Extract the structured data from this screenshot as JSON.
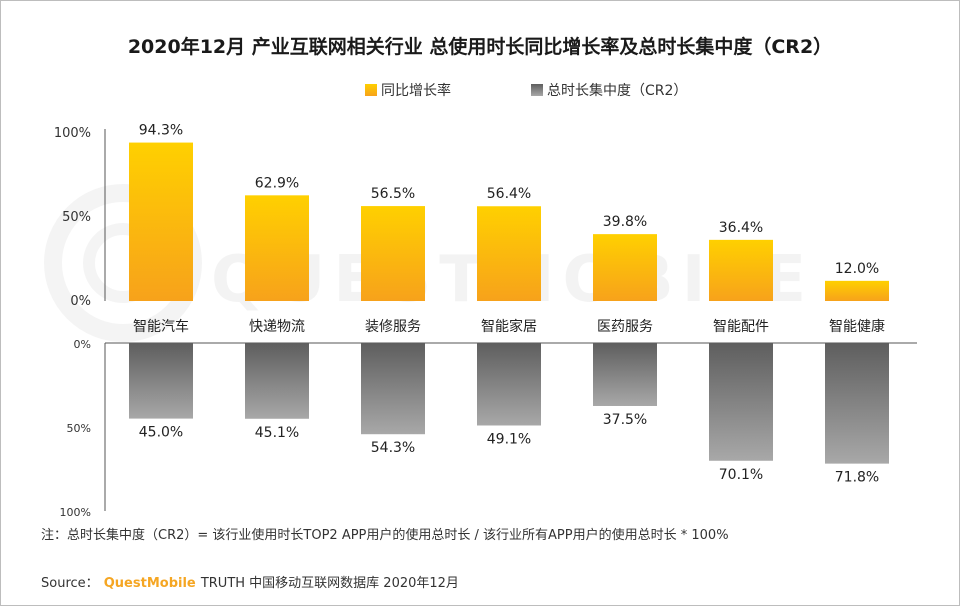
{
  "title": "2020年12月 产业互联网相关行业 总使用时长同比增长率及总时长集中度（CR2）",
  "chart_data": {
    "type": "bar",
    "categories": [
      "智能汽车",
      "快递物流",
      "装修服务",
      "智能家居",
      "医药服务",
      "智能配件",
      "智能健康"
    ],
    "series": [
      {
        "name": "同比增长率",
        "values": [
          94.3,
          62.9,
          56.5,
          56.4,
          39.8,
          36.4,
          12.0
        ],
        "labels": [
          "94.3%",
          "62.9%",
          "56.5%",
          "56.4%",
          "39.8%",
          "36.4%",
          "12.0%"
        ],
        "color": "#ffc000"
      },
      {
        "name": "总时长集中度（CR2）",
        "values": [
          45.0,
          45.1,
          54.3,
          49.1,
          37.5,
          70.1,
          71.8
        ],
        "labels": [
          "45.0%",
          "45.1%",
          "54.3%",
          "49.1%",
          "37.5%",
          "70.1%",
          "71.8%"
        ],
        "color": "#7f7f7f"
      }
    ],
    "top_axis": {
      "ticks": [
        "100%",
        "50%",
        "0%"
      ],
      "ylim": [
        0,
        100
      ]
    },
    "bottom_axis": {
      "ticks": [
        "0%",
        "50%",
        "100%"
      ],
      "ylim": [
        0,
        100
      ],
      "inverted": true
    },
    "legend_position": "top-center",
    "grid": false
  },
  "note": "注：总时长集中度（CR2）= 该行业使用时长TOP2 APP用户的使用总时长 / 该行业所有APP用户的使用总时长 * 100%",
  "source": {
    "prefix": "Source：",
    "brand": "QuestMobile",
    "suffix": " TRUTH 中国移动互联网数据库 2020年12月"
  },
  "watermark": "QUESTMOBILE"
}
